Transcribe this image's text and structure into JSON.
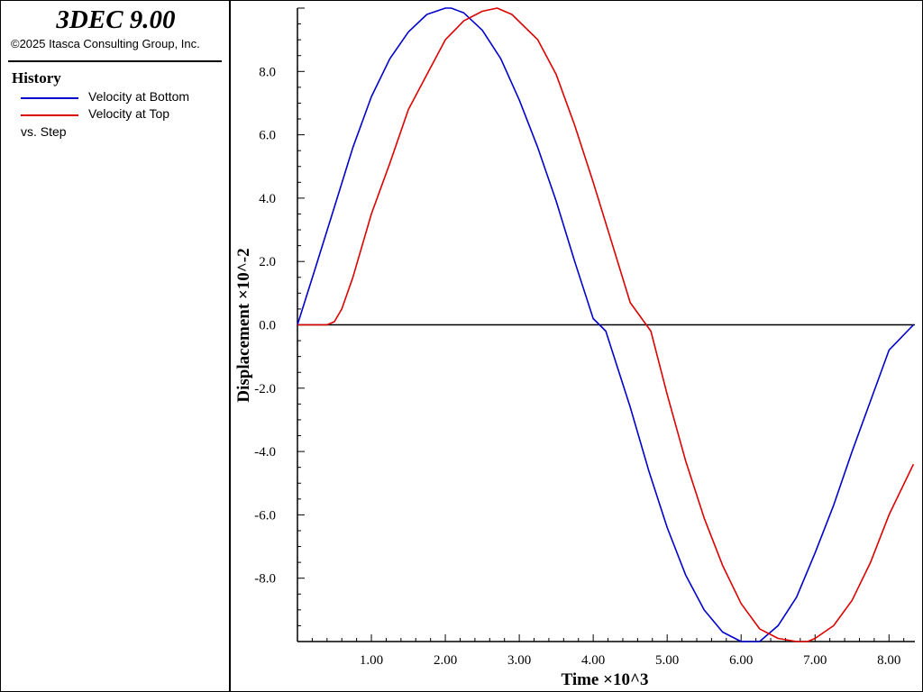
{
  "app": {
    "title": "3DEC 9.00",
    "copyright": "©2025 Itasca Consulting Group, Inc."
  },
  "legend": {
    "heading": "History",
    "entries": [
      {
        "label": "Velocity at Bottom",
        "color": "#0000cc"
      },
      {
        "label": "Velocity at Top",
        "color": "#dd0000"
      }
    ],
    "footer": "vs. Step"
  },
  "chart_data": {
    "type": "line",
    "xlabel": "Time ×10^3",
    "ylabel": "Displacement ×10^-2",
    "xlim": [
      0.0,
      8.35
    ],
    "ylim": [
      -10.0,
      10.0
    ],
    "xticks": [
      1.0,
      2.0,
      3.0,
      4.0,
      5.0,
      6.0,
      7.0,
      8.0
    ],
    "xtick_labels": [
      "1.00",
      "2.00",
      "3.00",
      "4.00",
      "5.00",
      "6.00",
      "7.00",
      "8.00"
    ],
    "yticks": [
      8.0,
      6.0,
      4.0,
      2.0,
      0.0,
      -2.0,
      -4.0,
      -6.0,
      -8.0
    ],
    "ytick_labels": [
      "8.0",
      "6.0",
      "4.0",
      "2.0",
      "0.0",
      "-2.0",
      "-4.0",
      "-6.0",
      "-8.0"
    ],
    "zero_line": true,
    "grid": false,
    "series": [
      {
        "name": "Velocity at Bottom",
        "color": "#0000cc",
        "x": [
          0.0,
          0.25,
          0.5,
          0.75,
          1.0,
          1.25,
          1.5,
          1.75,
          2.0,
          2.08,
          2.25,
          2.5,
          2.75,
          3.0,
          3.25,
          3.5,
          3.75,
          4.0,
          4.17,
          4.5,
          4.75,
          5.0,
          5.25,
          5.5,
          5.75,
          6.0,
          6.25,
          6.5,
          6.75,
          7.0,
          7.25,
          7.5,
          7.75,
          8.0,
          8.33
        ],
        "y": [
          0.0,
          1.85,
          3.72,
          5.6,
          7.2,
          8.4,
          9.25,
          9.8,
          10.0,
          10.0,
          9.85,
          9.3,
          8.4,
          7.1,
          5.6,
          3.9,
          2.0,
          0.2,
          -0.2,
          -2.6,
          -4.6,
          -6.4,
          -7.9,
          -9.0,
          -9.7,
          -10.0,
          -10.0,
          -9.5,
          -8.6,
          -7.2,
          -5.7,
          -4.0,
          -2.4,
          -0.8,
          0.0
        ]
      },
      {
        "name": "Velocity at Top",
        "color": "#dd0000",
        "x": [
          0.0,
          0.4,
          0.5,
          0.6,
          0.75,
          1.0,
          1.25,
          1.5,
          1.75,
          2.0,
          2.25,
          2.5,
          2.7,
          2.9,
          3.25,
          3.5,
          3.75,
          4.0,
          4.25,
          4.5,
          4.78,
          5.0,
          5.25,
          5.5,
          5.75,
          6.0,
          6.25,
          6.5,
          6.75,
          6.9,
          7.0,
          7.25,
          7.5,
          7.75,
          8.0,
          8.33
        ],
        "y": [
          0.0,
          0.0,
          0.1,
          0.5,
          1.5,
          3.5,
          5.1,
          6.8,
          7.9,
          9.0,
          9.6,
          9.9,
          10.0,
          9.8,
          9.0,
          7.9,
          6.3,
          4.5,
          2.6,
          0.7,
          -0.2,
          -2.2,
          -4.3,
          -6.1,
          -7.6,
          -8.8,
          -9.6,
          -9.9,
          -10.0,
          -10.0,
          -9.9,
          -9.5,
          -8.7,
          -7.5,
          -6.0,
          -4.4
        ]
      }
    ]
  }
}
